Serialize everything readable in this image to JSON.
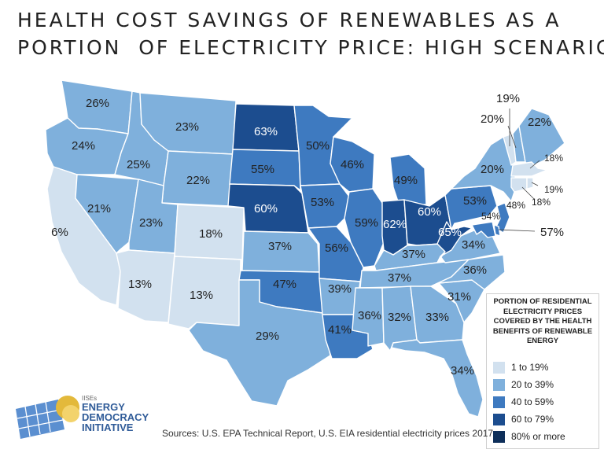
{
  "title": {
    "line1": "HEALTH COST SAVINGS OF RENEWABLES AS A",
    "line2": "PORTION  OF ELECTRICITY PRICE: HIGH SCENARIO"
  },
  "colors": {
    "bin_1_19": "#d2e1ef",
    "bin_20_39": "#7fb0dc",
    "bin_40_59": "#3e7ac0",
    "bin_60_79": "#1c4d8f",
    "bin_80_plus": "#0e2f5a",
    "label_dark": "#ffffff",
    "label_light": "#222222"
  },
  "legend": {
    "title": "PORTION OF RESIDENTIAL ELECTRICITY PRICES COVERED BY THE HEALTH BENEFITS  OF RENEWABLE ENERGY",
    "items": [
      {
        "label": "1 to 19%",
        "color": "#d2e1ef"
      },
      {
        "label": "20 to 39%",
        "color": "#7fb0dc"
      },
      {
        "label": "40 to 59%",
        "color": "#3e7ac0"
      },
      {
        "label": "60 to 79%",
        "color": "#1c4d8f"
      },
      {
        "label": "80% or more",
        "color": "#0e2f5a"
      }
    ]
  },
  "states": [
    {
      "id": "WA",
      "value": "26%",
      "bin": "20-39"
    },
    {
      "id": "OR",
      "value": "24%",
      "bin": "20-39"
    },
    {
      "id": "CA",
      "value": "6%",
      "bin": "1-19"
    },
    {
      "id": "NV",
      "value": "21%",
      "bin": "20-39"
    },
    {
      "id": "ID",
      "value": "25%",
      "bin": "20-39"
    },
    {
      "id": "MT",
      "value": "23%",
      "bin": "20-39"
    },
    {
      "id": "WY",
      "value": "22%",
      "bin": "20-39"
    },
    {
      "id": "UT",
      "value": "23%",
      "bin": "20-39"
    },
    {
      "id": "AZ",
      "value": "13%",
      "bin": "1-19"
    },
    {
      "id": "CO",
      "value": "18%",
      "bin": "1-19"
    },
    {
      "id": "NM",
      "value": "13%",
      "bin": "1-19"
    },
    {
      "id": "ND",
      "value": "63%",
      "bin": "60-79"
    },
    {
      "id": "SD",
      "value": "55%",
      "bin": "40-59"
    },
    {
      "id": "NE",
      "value": "60%",
      "bin": "60-79"
    },
    {
      "id": "KS",
      "value": "37%",
      "bin": "20-39"
    },
    {
      "id": "OK",
      "value": "47%",
      "bin": "40-59"
    },
    {
      "id": "TX",
      "value": "29%",
      "bin": "20-39"
    },
    {
      "id": "MN",
      "value": "50%",
      "bin": "40-59"
    },
    {
      "id": "IA",
      "value": "53%",
      "bin": "40-59"
    },
    {
      "id": "MO",
      "value": "56%",
      "bin": "40-59"
    },
    {
      "id": "AR",
      "value": "39%",
      "bin": "20-39"
    },
    {
      "id": "LA",
      "value": "41%",
      "bin": "40-59"
    },
    {
      "id": "WI",
      "value": "46%",
      "bin": "40-59"
    },
    {
      "id": "IL",
      "value": "59%",
      "bin": "40-59"
    },
    {
      "id": "MI",
      "value": "49%",
      "bin": "40-59"
    },
    {
      "id": "IN",
      "value": "62%",
      "bin": "60-79"
    },
    {
      "id": "OH",
      "value": "60%",
      "bin": "60-79"
    },
    {
      "id": "KY",
      "value": "37%",
      "bin": "20-39"
    },
    {
      "id": "TN",
      "value": "37%",
      "bin": "20-39"
    },
    {
      "id": "MS",
      "value": "36%",
      "bin": "20-39"
    },
    {
      "id": "AL",
      "value": "32%",
      "bin": "20-39"
    },
    {
      "id": "GA",
      "value": "33%",
      "bin": "20-39"
    },
    {
      "id": "FL",
      "value": "34%",
      "bin": "20-39"
    },
    {
      "id": "SC",
      "value": "31%",
      "bin": "20-39"
    },
    {
      "id": "NC",
      "value": "36%",
      "bin": "20-39"
    },
    {
      "id": "VA",
      "value": "34%",
      "bin": "20-39"
    },
    {
      "id": "WV",
      "value": "65%",
      "bin": "60-79"
    },
    {
      "id": "PA",
      "value": "53%",
      "bin": "40-59"
    },
    {
      "id": "NY",
      "value": "20%",
      "bin": "20-39"
    },
    {
      "id": "VT",
      "value": "19%",
      "bin": "1-19"
    },
    {
      "id": "NH",
      "value": "20%",
      "bin": "20-39"
    },
    {
      "id": "ME",
      "value": "22%",
      "bin": "20-39"
    },
    {
      "id": "MA",
      "value": "18%",
      "bin": "1-19"
    },
    {
      "id": "RI",
      "value": "19%",
      "bin": "1-19"
    },
    {
      "id": "CT",
      "value": "18%",
      "bin": "1-19"
    },
    {
      "id": "NJ",
      "value": "48%",
      "bin": "40-59"
    },
    {
      "id": "DE",
      "value": "57%",
      "bin": "40-59"
    },
    {
      "id": "MD",
      "value": "54%",
      "bin": "40-59"
    }
  ],
  "logo": {
    "small_text": "IISEs",
    "line1": "ENERGY",
    "line2": "DEMOCRACY",
    "line3": "INITIATIVE"
  },
  "source": "Sources: U.S. EPA Technical Report, U.S. EIA residential electricity prices 2017"
}
